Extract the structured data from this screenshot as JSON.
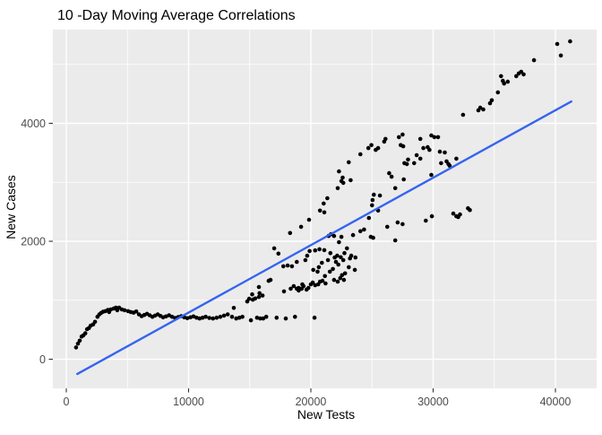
{
  "window": {
    "background": "#FFFFFF"
  },
  "chart_data": {
    "type": "scatter",
    "title": "10 -Day Moving Average Correlations",
    "xlabel": "New Tests",
    "ylabel": "New Cases",
    "x_ticks": [
      0,
      10000,
      20000,
      30000,
      40000
    ],
    "x_tick_labels": [
      "0",
      "10000",
      "20000",
      "30000",
      "40000"
    ],
    "y_ticks": [
      0,
      2000,
      4000
    ],
    "y_tick_labels": [
      "0",
      "2000",
      "4000"
    ],
    "x_minor_ticks": [
      5000,
      15000,
      25000,
      35000
    ],
    "y_minor_ticks": [
      1000,
      3000,
      5000
    ],
    "xlim": [
      -1100,
      43370
    ],
    "ylim": [
      -494,
      5589
    ],
    "grid": true,
    "legend_position": "none",
    "panel_bg": "#EBEBEB",
    "grid_color": "#FFFFFF",
    "point_color": "#000000",
    "tick_mark_color": "#333333",
    "tick_label_color": "#4D4D4D",
    "trend_color": "#3564F0",
    "trend_line": {
      "x1": 900,
      "y1": -250,
      "x2": 41300,
      "y2": 4370
    },
    "points": [
      [
        800,
        200
      ],
      [
        950,
        265
      ],
      [
        1100,
        315
      ],
      [
        1250,
        385
      ],
      [
        1400,
        405
      ],
      [
        1550,
        440
      ],
      [
        1700,
        510
      ],
      [
        1850,
        530
      ],
      [
        2000,
        570
      ],
      [
        2200,
        590
      ],
      [
        2350,
        635
      ],
      [
        2550,
        720
      ],
      [
        2700,
        760
      ],
      [
        2850,
        785
      ],
      [
        3000,
        805
      ],
      [
        3200,
        815
      ],
      [
        3400,
        835
      ],
      [
        3500,
        800
      ],
      [
        3650,
        845
      ],
      [
        3880,
        860
      ],
      [
        4050,
        875
      ],
      [
        4170,
        830
      ],
      [
        4320,
        875
      ],
      [
        4540,
        845
      ],
      [
        4760,
        830
      ],
      [
        5050,
        815
      ],
      [
        5270,
        800
      ],
      [
        5500,
        790
      ],
      [
        5720,
        810
      ],
      [
        5940,
        760
      ],
      [
        6160,
        730
      ],
      [
        6380,
        750
      ],
      [
        6600,
        770
      ],
      [
        6820,
        745
      ],
      [
        7040,
        720
      ],
      [
        7260,
        740
      ],
      [
        7480,
        760
      ],
      [
        7700,
        735
      ],
      [
        7920,
        710
      ],
      [
        8150,
        725
      ],
      [
        8400,
        745
      ],
      [
        8650,
        720
      ],
      [
        8900,
        700
      ],
      [
        9150,
        715
      ],
      [
        9400,
        730
      ],
      [
        9650,
        710
      ],
      [
        9900,
        695
      ],
      [
        10150,
        710
      ],
      [
        10400,
        725
      ],
      [
        10650,
        705
      ],
      [
        10900,
        690
      ],
      [
        11150,
        705
      ],
      [
        11400,
        720
      ],
      [
        11700,
        700
      ],
      [
        12000,
        690
      ],
      [
        12300,
        705
      ],
      [
        12600,
        720
      ],
      [
        12900,
        740
      ],
      [
        13200,
        760
      ],
      [
        13550,
        720
      ],
      [
        13700,
        870
      ],
      [
        13900,
        690
      ],
      [
        14150,
        705
      ],
      [
        14400,
        720
      ],
      [
        15100,
        660
      ],
      [
        15600,
        705
      ],
      [
        15850,
        690
      ],
      [
        16100,
        690
      ],
      [
        16350,
        720
      ],
      [
        17200,
        705
      ],
      [
        17950,
        690
      ],
      [
        18700,
        720
      ],
      [
        20300,
        705
      ],
      [
        14800,
        980
      ],
      [
        14950,
        1025
      ],
      [
        15200,
        1100
      ],
      [
        15250,
        1010
      ],
      [
        15450,
        1030
      ],
      [
        15750,
        1055
      ],
      [
        15800,
        1120
      ],
      [
        15750,
        1225
      ],
      [
        16050,
        1080
      ],
      [
        16550,
        1330
      ],
      [
        16700,
        1345
      ],
      [
        17800,
        1150
      ],
      [
        18350,
        1195
      ],
      [
        18600,
        1240
      ],
      [
        18850,
        1195
      ],
      [
        19000,
        1165
      ],
      [
        19250,
        1195
      ],
      [
        19400,
        1240
      ],
      [
        19650,
        1180
      ],
      [
        19800,
        1210
      ],
      [
        19000,
        1210
      ],
      [
        19300,
        1270
      ],
      [
        20000,
        1270
      ],
      [
        20150,
        1300
      ],
      [
        20350,
        1255
      ],
      [
        20600,
        1270
      ],
      [
        20750,
        1315
      ],
      [
        20950,
        1330
      ],
      [
        21200,
        1285
      ],
      [
        21900,
        1345
      ],
      [
        22200,
        1315
      ],
      [
        22400,
        1375
      ],
      [
        22700,
        1345
      ],
      [
        17000,
        1880
      ],
      [
        17350,
        1790
      ],
      [
        17750,
        1575
      ],
      [
        18100,
        1590
      ],
      [
        18300,
        2140
      ],
      [
        18450,
        1575
      ],
      [
        18850,
        1650
      ],
      [
        19200,
        2245
      ],
      [
        19550,
        1680
      ],
      [
        19700,
        1755
      ],
      [
        19850,
        2365
      ],
      [
        19900,
        1835
      ],
      [
        20200,
        1515
      ],
      [
        20350,
        1845
      ],
      [
        20550,
        1485
      ],
      [
        20650,
        1560
      ],
      [
        20700,
        1865
      ],
      [
        20900,
        1635
      ],
      [
        21100,
        1850
      ],
      [
        21150,
        1410
      ],
      [
        21400,
        1680
      ],
      [
        21450,
        2090
      ],
      [
        21550,
        1485
      ],
      [
        21600,
        1800
      ],
      [
        21650,
        2120
      ],
      [
        21800,
        1530
      ],
      [
        21900,
        2090
      ],
      [
        21950,
        1725
      ],
      [
        22050,
        1650
      ],
      [
        22150,
        1755
      ],
      [
        22250,
        1605
      ],
      [
        22300,
        1985
      ],
      [
        22450,
        1730
      ],
      [
        22500,
        2075
      ],
      [
        22550,
        1425
      ],
      [
        22650,
        1680
      ],
      [
        22750,
        1800
      ],
      [
        22800,
        1455
      ],
      [
        22950,
        1880
      ],
      [
        23100,
        1560
      ],
      [
        23200,
        1710
      ],
      [
        23300,
        1755
      ],
      [
        23450,
        2105
      ],
      [
        23600,
        1515
      ],
      [
        23650,
        1725
      ],
      [
        20750,
        2520
      ],
      [
        21050,
        2640
      ],
      [
        21100,
        2490
      ],
      [
        21350,
        2730
      ],
      [
        22200,
        2900
      ],
      [
        22300,
        3185
      ],
      [
        22500,
        3020
      ],
      [
        22600,
        3080
      ],
      [
        22650,
        2990
      ],
      [
        23100,
        3340
      ],
      [
        23250,
        3035
      ],
      [
        24050,
        2170
      ],
      [
        24350,
        2200
      ],
      [
        24750,
        2395
      ],
      [
        24900,
        2075
      ],
      [
        25100,
        2060
      ],
      [
        25500,
        2520
      ],
      [
        26250,
        2245
      ],
      [
        26900,
        2015
      ],
      [
        27100,
        2320
      ],
      [
        27500,
        2290
      ],
      [
        24050,
        3475
      ],
      [
        24700,
        3580
      ],
      [
        24950,
        3630
      ],
      [
        25050,
        2700
      ],
      [
        25150,
        2790
      ],
      [
        25000,
        2610
      ],
      [
        25300,
        3550
      ],
      [
        25500,
        3580
      ],
      [
        25650,
        2775
      ],
      [
        26000,
        3690
      ],
      [
        26100,
        3735
      ],
      [
        26400,
        3155
      ],
      [
        26600,
        3095
      ],
      [
        26900,
        2900
      ],
      [
        27200,
        3765
      ],
      [
        27350,
        3630
      ],
      [
        27500,
        3810
      ],
      [
        27550,
        3610
      ],
      [
        27600,
        3050
      ],
      [
        27650,
        3325
      ],
      [
        27850,
        3310
      ],
      [
        27950,
        3385
      ],
      [
        28450,
        3325
      ],
      [
        28650,
        3460
      ],
      [
        28950,
        3400
      ],
      [
        28950,
        3735
      ],
      [
        29200,
        3580
      ],
      [
        29550,
        3595
      ],
      [
        29700,
        3550
      ],
      [
        29850,
        3795
      ],
      [
        29850,
        3125
      ],
      [
        30100,
        3765
      ],
      [
        30400,
        3765
      ],
      [
        30550,
        3520
      ],
      [
        30650,
        3325
      ],
      [
        30950,
        3505
      ],
      [
        31100,
        3355
      ],
      [
        31250,
        3310
      ],
      [
        31350,
        3280
      ],
      [
        31900,
        3400
      ],
      [
        32450,
        4145
      ],
      [
        29400,
        2350
      ],
      [
        29900,
        2425
      ],
      [
        31650,
        2470
      ],
      [
        31900,
        2425
      ],
      [
        32050,
        2410
      ],
      [
        32200,
        2455
      ],
      [
        32850,
        2560
      ],
      [
        33000,
        2530
      ],
      [
        33700,
        4220
      ],
      [
        33850,
        4265
      ],
      [
        34100,
        4235
      ],
      [
        34650,
        4340
      ],
      [
        34800,
        4390
      ],
      [
        35300,
        4525
      ],
      [
        35550,
        4800
      ],
      [
        35700,
        4720
      ],
      [
        35800,
        4675
      ],
      [
        36100,
        4705
      ],
      [
        36800,
        4800
      ],
      [
        37000,
        4845
      ],
      [
        37200,
        4875
      ],
      [
        37400,
        4830
      ],
      [
        38250,
        5070
      ],
      [
        40150,
        5345
      ],
      [
        40450,
        5150
      ],
      [
        41200,
        5390
      ]
    ]
  }
}
